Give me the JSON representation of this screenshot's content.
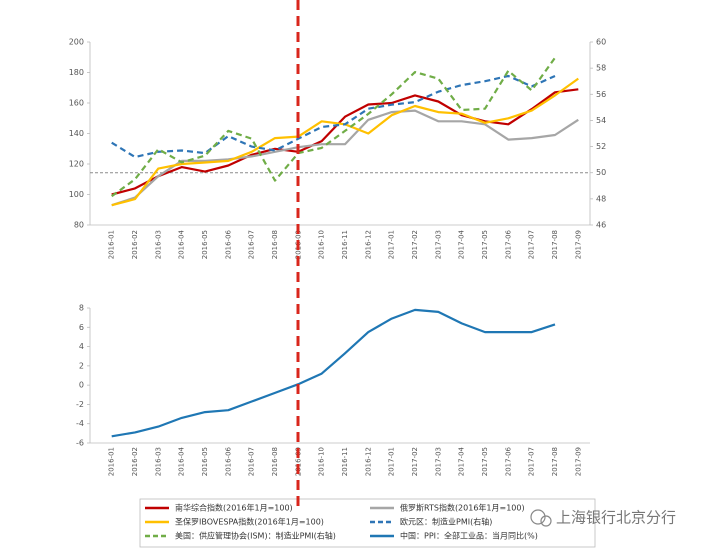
{
  "chart_data": [
    {
      "type": "line",
      "categories": [
        "2016-01",
        "2016-02",
        "2016-03",
        "2016-04",
        "2016-05",
        "2016-06",
        "2016-07",
        "2016-08",
        "2016-09",
        "2016-10",
        "2016-11",
        "2016-12",
        "2017-01",
        "2017-02",
        "2017-03",
        "2017-04",
        "2017-05",
        "2017-06",
        "2017-07",
        "2017-08",
        "2017-09"
      ],
      "ylim": [
        80,
        200
      ],
      "yticks": [
        80,
        100,
        120,
        140,
        160,
        180,
        200
      ],
      "y2lim": [
        46,
        60
      ],
      "y2ticks": [
        46,
        48,
        50,
        52,
        54,
        56,
        58,
        60
      ],
      "reference_line": {
        "axis": "y2",
        "value": 50,
        "color": "#8c8c8c"
      },
      "series": [
        {
          "name": "南华综合指数(2016年1月=100)",
          "color": "#c00000",
          "dash": false,
          "values": [
            100,
            104,
            112,
            118,
            115,
            119,
            126,
            130,
            128,
            135,
            151,
            159,
            160,
            165,
            161,
            152,
            148,
            146,
            156,
            167,
            169
          ]
        },
        {
          "name": "俄罗斯RTS指数(2016年1月=100)",
          "color": "#a6a6a6",
          "dash": false,
          "values": [
            93,
            98,
            112,
            122,
            122,
            123,
            125,
            128,
            131,
            133,
            133,
            149,
            154,
            155,
            148,
            148,
            146,
            136,
            137,
            139,
            149
          ]
        },
        {
          "name": "圣保罗IBOVESPA指数(2016年1月=100)",
          "color": "#ffc000",
          "dash": false,
          "values": [
            93,
            97,
            117,
            120,
            121,
            122,
            128,
            137,
            138,
            148,
            146,
            140,
            152,
            158,
            154,
            153,
            147,
            150,
            155,
            165,
            176
          ]
        },
        {
          "name": "欧元区：制造业PMI(右轴)",
          "color": "#2e75b6",
          "dash": true,
          "axis": "y2",
          "values": [
            52.3,
            51.2,
            51.6,
            51.7,
            51.5,
            52.8,
            52.0,
            51.7,
            52.6,
            53.5,
            53.7,
            54.9,
            55.2,
            55.4,
            56.2,
            56.7,
            57.0,
            57.4,
            56.6,
            57.4,
            null
          ]
        },
        {
          "name": "美国：供应管理协会(ISM)：制造业PMI(右轴)",
          "color": "#70ad47",
          "dash": true,
          "axis": "y2",
          "values": [
            48.2,
            49.5,
            51.8,
            50.8,
            51.3,
            53.2,
            52.6,
            49.4,
            51.5,
            51.9,
            53.2,
            54.5,
            56.0,
            57.7,
            57.2,
            54.8,
            54.9,
            57.8,
            56.3,
            58.8,
            null
          ]
        }
      ]
    },
    {
      "type": "line",
      "categories": [
        "2016-01",
        "2016-02",
        "2016-03",
        "2016-04",
        "2016-05",
        "2016-06",
        "2016-07",
        "2016-08",
        "2016-09",
        "2016-10",
        "2016-11",
        "2016-12",
        "2017-01",
        "2017-02",
        "2017-03",
        "2017-04",
        "2017-05",
        "2017-06",
        "2017-07",
        "2017-08",
        "2017-09"
      ],
      "ylim": [
        -6,
        8
      ],
      "yticks": [
        -6,
        -4,
        -2,
        0,
        2,
        4,
        6,
        8
      ],
      "series": [
        {
          "name": "中国：PPI：全部工业品：当月同比(%)",
          "color": "#1f77b4",
          "dash": false,
          "values": [
            -5.3,
            -4.9,
            -4.3,
            -3.4,
            -2.8,
            -2.6,
            -1.7,
            -0.8,
            0.1,
            1.2,
            3.3,
            5.5,
            6.9,
            7.8,
            7.6,
            6.4,
            5.5,
            5.5,
            5.5,
            6.3,
            null
          ]
        }
      ]
    }
  ],
  "watermark": "上海银行北京分行"
}
